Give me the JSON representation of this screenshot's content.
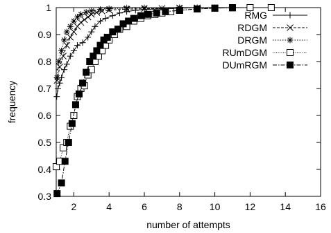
{
  "chart_data": {
    "type": "line",
    "xlabel": "number of attempts",
    "ylabel": "frequency",
    "xlim": [
      1,
      16
    ],
    "ylim": [
      0.3,
      1
    ],
    "xticks": [
      2,
      4,
      6,
      8,
      10,
      12,
      14,
      16
    ],
    "yticks": [
      0.3,
      0.4,
      0.5,
      0.6,
      0.7,
      0.8,
      0.9,
      1
    ],
    "grid": false,
    "legend_position": "top-right",
    "series": [
      {
        "name": "RMG",
        "marker": "plus",
        "x": [
          1.03,
          1.1,
          1.2,
          1.3,
          1.45,
          1.6,
          1.8,
          2.0,
          2.2,
          2.5,
          2.8,
          3.0,
          3.2,
          3.5,
          3.8,
          4.2,
          4.6,
          5.0,
          5.5,
          6.0,
          7.0,
          8.0,
          9.0
        ],
        "y": [
          0.67,
          0.7,
          0.72,
          0.74,
          0.77,
          0.79,
          0.82,
          0.84,
          0.86,
          0.87,
          0.89,
          0.91,
          0.93,
          0.95,
          0.96,
          0.97,
          0.98,
          0.985,
          0.99,
          0.993,
          0.996,
          0.998,
          1.0
        ]
      },
      {
        "name": "RDGM",
        "marker": "x",
        "x": [
          1.05,
          1.2,
          1.4,
          1.6,
          1.8,
          2.0,
          2.2,
          2.4,
          2.6,
          2.8,
          3.0,
          3.3,
          3.6,
          4.0,
          5.0,
          6.0,
          7.0,
          8.0,
          9.0,
          10.0,
          11.0,
          12.0
        ],
        "y": [
          0.73,
          0.78,
          0.82,
          0.86,
          0.89,
          0.91,
          0.93,
          0.945,
          0.955,
          0.965,
          0.975,
          0.982,
          0.987,
          0.991,
          0.994,
          0.996,
          0.997,
          0.998,
          0.999,
          0.999,
          1.0,
          1.0
        ]
      },
      {
        "name": "DRGM",
        "marker": "star",
        "x": [
          1.05,
          1.15,
          1.3,
          1.45,
          1.6,
          1.8,
          2.0,
          2.2,
          2.4,
          2.7,
          3.0,
          3.5,
          4.0,
          5.0,
          6.0,
          8.0,
          10.0
        ],
        "y": [
          0.74,
          0.8,
          0.84,
          0.88,
          0.91,
          0.93,
          0.95,
          0.965,
          0.975,
          0.983,
          0.988,
          0.993,
          0.996,
          0.998,
          0.999,
          1.0,
          1.0
        ]
      },
      {
        "name": "RUmDGM",
        "marker": "open-square",
        "x": [
          1.0,
          1.2,
          1.4,
          1.6,
          1.8,
          2.0,
          2.2,
          2.4,
          2.6,
          2.8,
          3.0,
          3.2,
          3.4,
          3.6,
          3.8,
          4.0,
          4.3,
          4.6,
          5.0,
          5.4,
          5.8,
          6.2,
          6.6,
          7.0,
          7.5,
          8.0,
          9.0,
          10.0,
          11.0,
          12.0,
          13.2
        ],
        "y": [
          0.41,
          0.43,
          0.48,
          0.5,
          0.56,
          0.6,
          0.67,
          0.7,
          0.71,
          0.75,
          0.77,
          0.8,
          0.82,
          0.84,
          0.86,
          0.88,
          0.9,
          0.92,
          0.93,
          0.95,
          0.96,
          0.97,
          0.975,
          0.98,
          0.985,
          0.99,
          0.995,
          0.998,
          0.999,
          1.0,
          1.0
        ]
      },
      {
        "name": "DUmRGM",
        "marker": "filled-square",
        "x": [
          1.05,
          1.3,
          1.5,
          1.7,
          1.9,
          2.1,
          2.3,
          2.5,
          2.7,
          2.9,
          3.1,
          3.3,
          3.5,
          3.7,
          3.9,
          4.2,
          4.5,
          4.8,
          5.1,
          5.4,
          5.8,
          6.2,
          6.7,
          7.2,
          8.0,
          9.0,
          10.0,
          11.0
        ],
        "y": [
          0.31,
          0.35,
          0.43,
          0.5,
          0.57,
          0.64,
          0.68,
          0.72,
          0.76,
          0.8,
          0.82,
          0.84,
          0.86,
          0.88,
          0.89,
          0.91,
          0.92,
          0.94,
          0.95,
          0.96,
          0.97,
          0.975,
          0.98,
          0.985,
          0.99,
          0.995,
          0.998,
          1.0
        ]
      }
    ]
  }
}
